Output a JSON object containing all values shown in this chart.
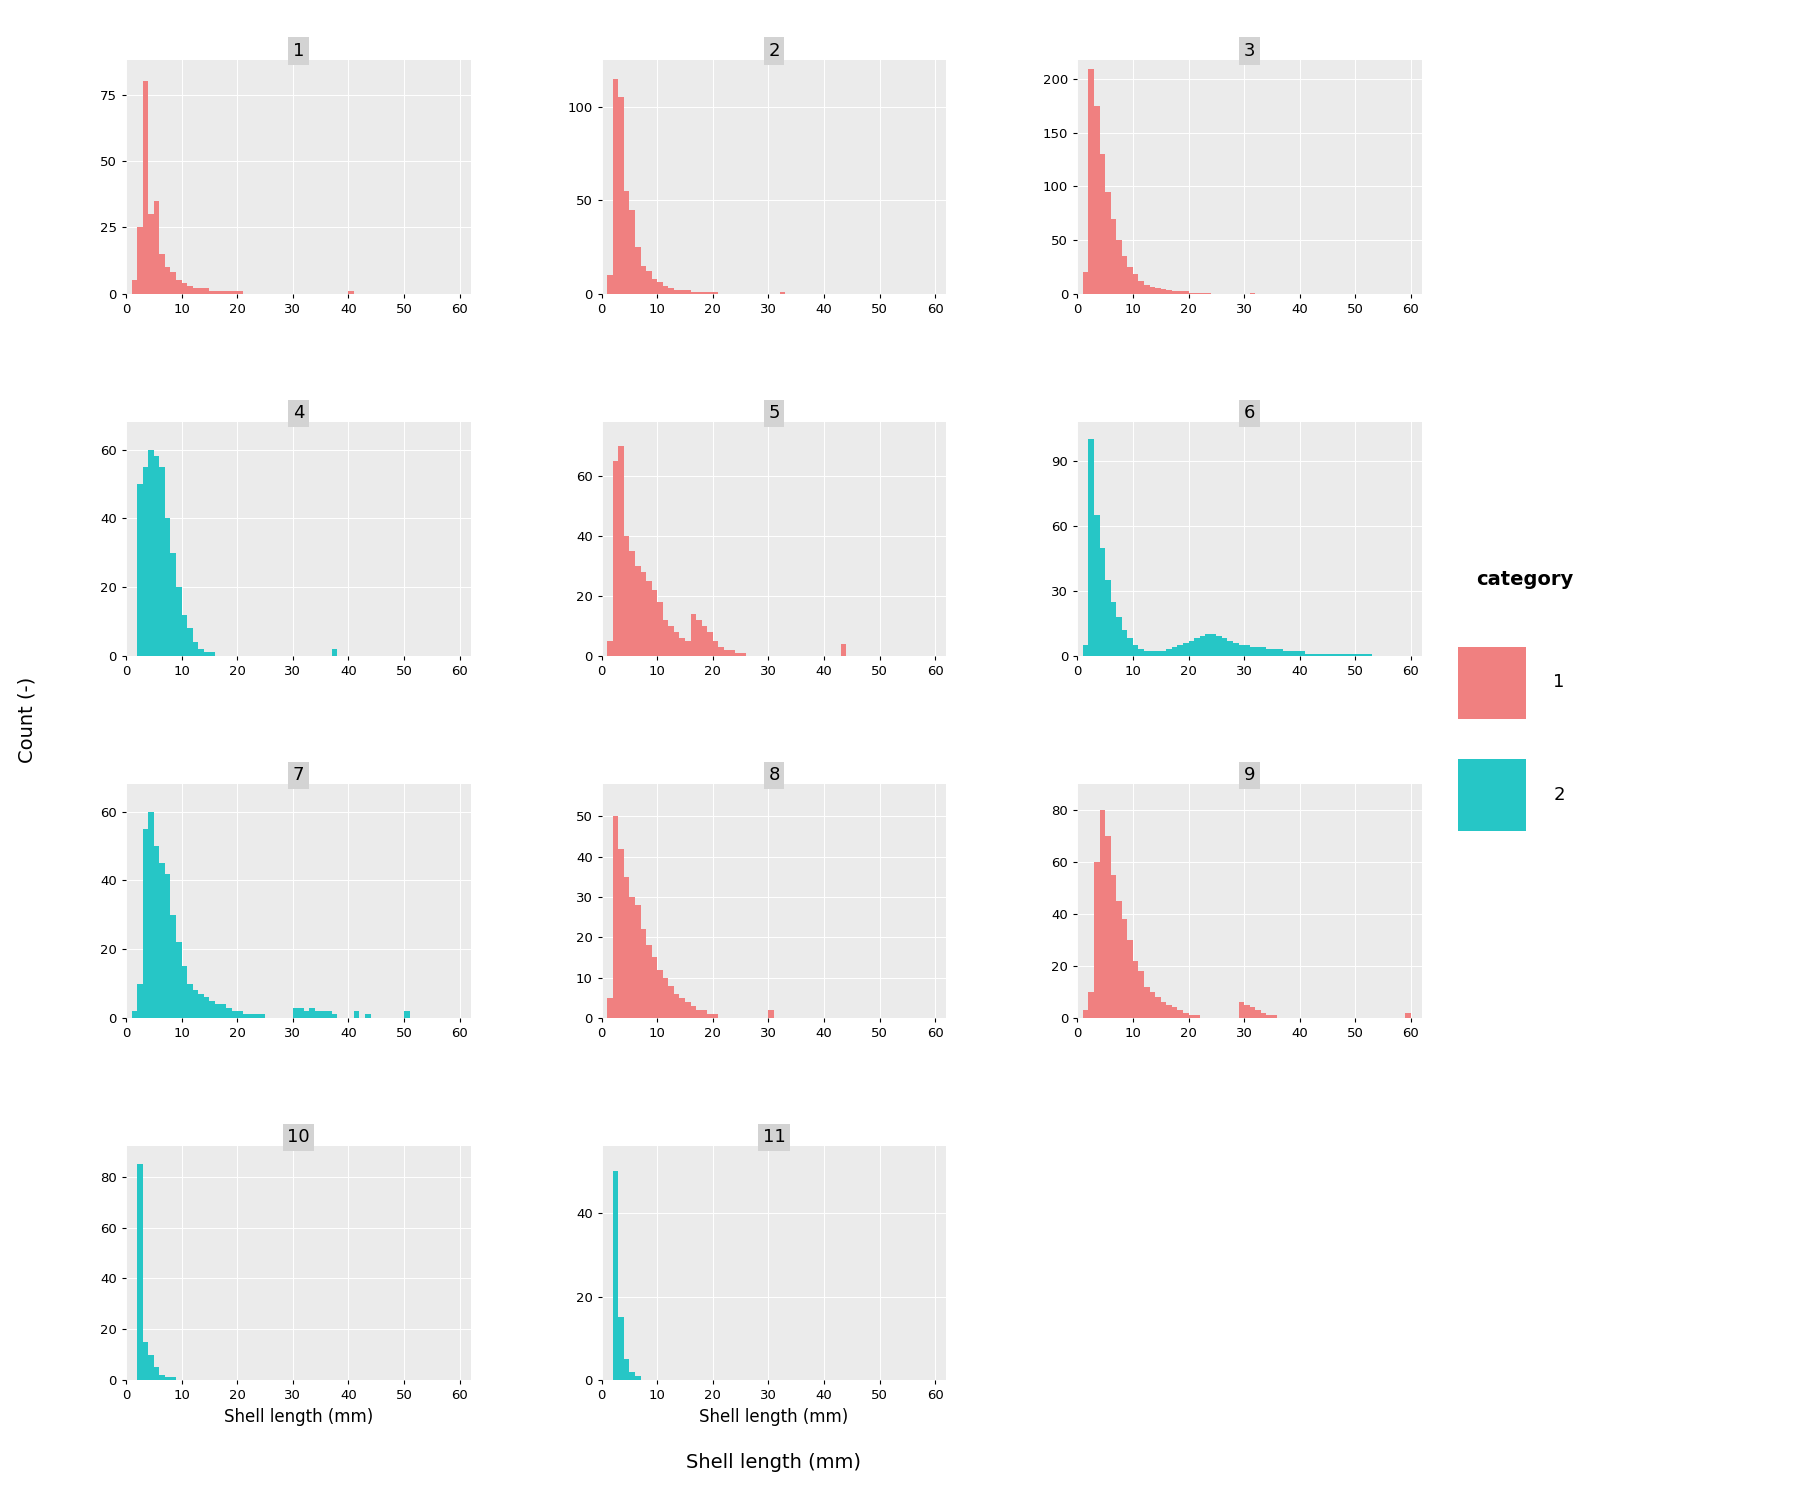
{
  "subplots": [
    {
      "id": 1,
      "category": 1,
      "counts": [
        0,
        5,
        25,
        80,
        30,
        35,
        15,
        10,
        8,
        5,
        4,
        3,
        2,
        2,
        2,
        1,
        1,
        1,
        1,
        1,
        1,
        0,
        0,
        0,
        0,
        0,
        0,
        0,
        0,
        0,
        0,
        0,
        0,
        0,
        0,
        0,
        0,
        0,
        0,
        0,
        1,
        0,
        0,
        0,
        0,
        0,
        0,
        0,
        0,
        0,
        0,
        0,
        0,
        0,
        0,
        0,
        0,
        0,
        0,
        0
      ],
      "yticks": [
        0,
        25,
        50,
        75
      ],
      "ymax": 88
    },
    {
      "id": 2,
      "category": 1,
      "counts": [
        0,
        10,
        115,
        105,
        55,
        45,
        25,
        15,
        12,
        8,
        6,
        4,
        3,
        2,
        2,
        2,
        1,
        1,
        1,
        1,
        1,
        0,
        0,
        0,
        0,
        0,
        0,
        0,
        0,
        0,
        0,
        0,
        1,
        0,
        0,
        0,
        0,
        0,
        0,
        0,
        0,
        0,
        0,
        0,
        0,
        0,
        0,
        0,
        0,
        0,
        0,
        0,
        0,
        0,
        0,
        0,
        0,
        0,
        0,
        0
      ],
      "yticks": [
        0,
        50,
        100
      ],
      "ymax": 125
    },
    {
      "id": 3,
      "category": 1,
      "counts": [
        0,
        20,
        210,
        175,
        130,
        95,
        70,
        50,
        35,
        25,
        18,
        12,
        8,
        6,
        5,
        4,
        3,
        2,
        2,
        2,
        1,
        1,
        1,
        1,
        0,
        0,
        0,
        0,
        0,
        0,
        0,
        1,
        0,
        0,
        0,
        0,
        0,
        0,
        0,
        0,
        0,
        0,
        0,
        0,
        0,
        0,
        0,
        0,
        0,
        0,
        0,
        0,
        0,
        0,
        0,
        0,
        0,
        0,
        0,
        0
      ],
      "yticks": [
        0,
        50,
        100,
        150,
        200
      ],
      "ymax": 218
    },
    {
      "id": 4,
      "category": 2,
      "counts": [
        0,
        0,
        50,
        55,
        60,
        58,
        55,
        40,
        30,
        20,
        12,
        8,
        4,
        2,
        1,
        1,
        0,
        0,
        0,
        0,
        0,
        0,
        0,
        0,
        0,
        0,
        0,
        0,
        0,
        0,
        0,
        0,
        0,
        0,
        0,
        0,
        0,
        2,
        0,
        0,
        0,
        0,
        0,
        0,
        0,
        0,
        0,
        0,
        0,
        0,
        0,
        0,
        0,
        0,
        0,
        0,
        0,
        0,
        0,
        0
      ],
      "yticks": [
        0,
        20,
        40,
        60
      ],
      "ymax": 68
    },
    {
      "id": 5,
      "category": 1,
      "counts": [
        0,
        5,
        65,
        70,
        40,
        35,
        30,
        28,
        25,
        22,
        18,
        12,
        10,
        8,
        6,
        5,
        14,
        12,
        10,
        8,
        5,
        3,
        2,
        2,
        1,
        1,
        0,
        0,
        0,
        0,
        0,
        0,
        0,
        0,
        0,
        0,
        0,
        0,
        0,
        0,
        0,
        0,
        0,
        4,
        0,
        0,
        0,
        0,
        0,
        0,
        0,
        0,
        0,
        0,
        0,
        0,
        0,
        0,
        0,
        0
      ],
      "yticks": [
        0,
        20,
        40,
        60
      ],
      "ymax": 78
    },
    {
      "id": 6,
      "category": 2,
      "counts": [
        0,
        5,
        100,
        65,
        50,
        35,
        25,
        18,
        12,
        8,
        5,
        3,
        2,
        2,
        2,
        2,
        3,
        4,
        5,
        6,
        7,
        8,
        9,
        10,
        10,
        9,
        8,
        7,
        6,
        5,
        5,
        4,
        4,
        4,
        3,
        3,
        3,
        2,
        2,
        2,
        2,
        1,
        1,
        1,
        1,
        1,
        1,
        1,
        1,
        1,
        1,
        1,
        1,
        0,
        0,
        0,
        0,
        0,
        0,
        0
      ],
      "yticks": [
        0,
        30,
        60,
        90
      ],
      "ymax": 108
    },
    {
      "id": 7,
      "category": 2,
      "counts": [
        0,
        2,
        10,
        55,
        60,
        50,
        45,
        42,
        30,
        22,
        15,
        10,
        8,
        7,
        6,
        5,
        4,
        4,
        3,
        2,
        2,
        1,
        1,
        1,
        1,
        0,
        0,
        0,
        0,
        0,
        3,
        3,
        2,
        3,
        2,
        2,
        2,
        1,
        0,
        0,
        0,
        2,
        0,
        1,
        0,
        0,
        0,
        0,
        0,
        0,
        2,
        0,
        0,
        0,
        0,
        0,
        0,
        0,
        0,
        0
      ],
      "yticks": [
        0,
        20,
        40,
        60
      ],
      "ymax": 68
    },
    {
      "id": 8,
      "category": 1,
      "counts": [
        0,
        5,
        50,
        42,
        35,
        30,
        28,
        22,
        18,
        15,
        12,
        10,
        8,
        6,
        5,
        4,
        3,
        2,
        2,
        1,
        1,
        0,
        0,
        0,
        0,
        0,
        0,
        0,
        0,
        0,
        2,
        0,
        0,
        0,
        0,
        0,
        0,
        0,
        0,
        0,
        0,
        0,
        0,
        0,
        0,
        0,
        0,
        0,
        0,
        0,
        0,
        0,
        0,
        0,
        0,
        0,
        0,
        0,
        0,
        0
      ],
      "yticks": [
        0,
        10,
        20,
        30,
        40,
        50
      ],
      "ymax": 58
    },
    {
      "id": 9,
      "category": 1,
      "counts": [
        0,
        3,
        10,
        60,
        80,
        70,
        55,
        45,
        38,
        30,
        22,
        18,
        12,
        10,
        8,
        6,
        5,
        4,
        3,
        2,
        1,
        1,
        0,
        0,
        0,
        0,
        0,
        0,
        0,
        6,
        5,
        4,
        3,
        2,
        1,
        1,
        0,
        0,
        0,
        0,
        0,
        0,
        0,
        0,
        0,
        0,
        0,
        0,
        0,
        0,
        0,
        0,
        0,
        0,
        0,
        0,
        0,
        0,
        0,
        2
      ],
      "yticks": [
        0,
        20,
        40,
        60,
        80
      ],
      "ymax": 90
    },
    {
      "id": 10,
      "category": 2,
      "counts": [
        0,
        0,
        85,
        15,
        10,
        5,
        2,
        1,
        1,
        0,
        0,
        0,
        0,
        0,
        0,
        0,
        0,
        0,
        0,
        0,
        0,
        0,
        0,
        0,
        0,
        0,
        0,
        0,
        0,
        0,
        0,
        0,
        0,
        0,
        0,
        0,
        0,
        0,
        0,
        0,
        0,
        0,
        0,
        0,
        0,
        0,
        0,
        0,
        0,
        0,
        0,
        0,
        0,
        0,
        0,
        0,
        0,
        0,
        0,
        0
      ],
      "yticks": [
        0,
        20,
        40,
        60,
        80
      ],
      "ymax": 92
    },
    {
      "id": 11,
      "category": 2,
      "counts": [
        0,
        0,
        50,
        15,
        5,
        2,
        1,
        0,
        0,
        0,
        0,
        0,
        0,
        0,
        0,
        0,
        0,
        0,
        0,
        0,
        0,
        0,
        0,
        0,
        0,
        0,
        0,
        0,
        0,
        0,
        0,
        0,
        0,
        0,
        0,
        0,
        0,
        0,
        0,
        0,
        0,
        0,
        0,
        0,
        0,
        0,
        0,
        0,
        0,
        0,
        0,
        0,
        0,
        0,
        0,
        0,
        0,
        0,
        0,
        0
      ],
      "yticks": [
        0,
        20,
        40
      ],
      "ymax": 56
    }
  ],
  "color_cat1": "#F08080",
  "color_cat2": "#26C6C6",
  "background_panel": "#EBEBEB",
  "background_figure": "#FFFFFF",
  "xlabel": "Shell length (mm)",
  "ylabel": "Count (-)",
  "legend_title": "category",
  "grid_color": "#FFFFFF",
  "strip_bg": "#D3D3D3",
  "xlim": [
    0,
    62
  ],
  "xticks": [
    0,
    10,
    20,
    30,
    40,
    50,
    60
  ]
}
